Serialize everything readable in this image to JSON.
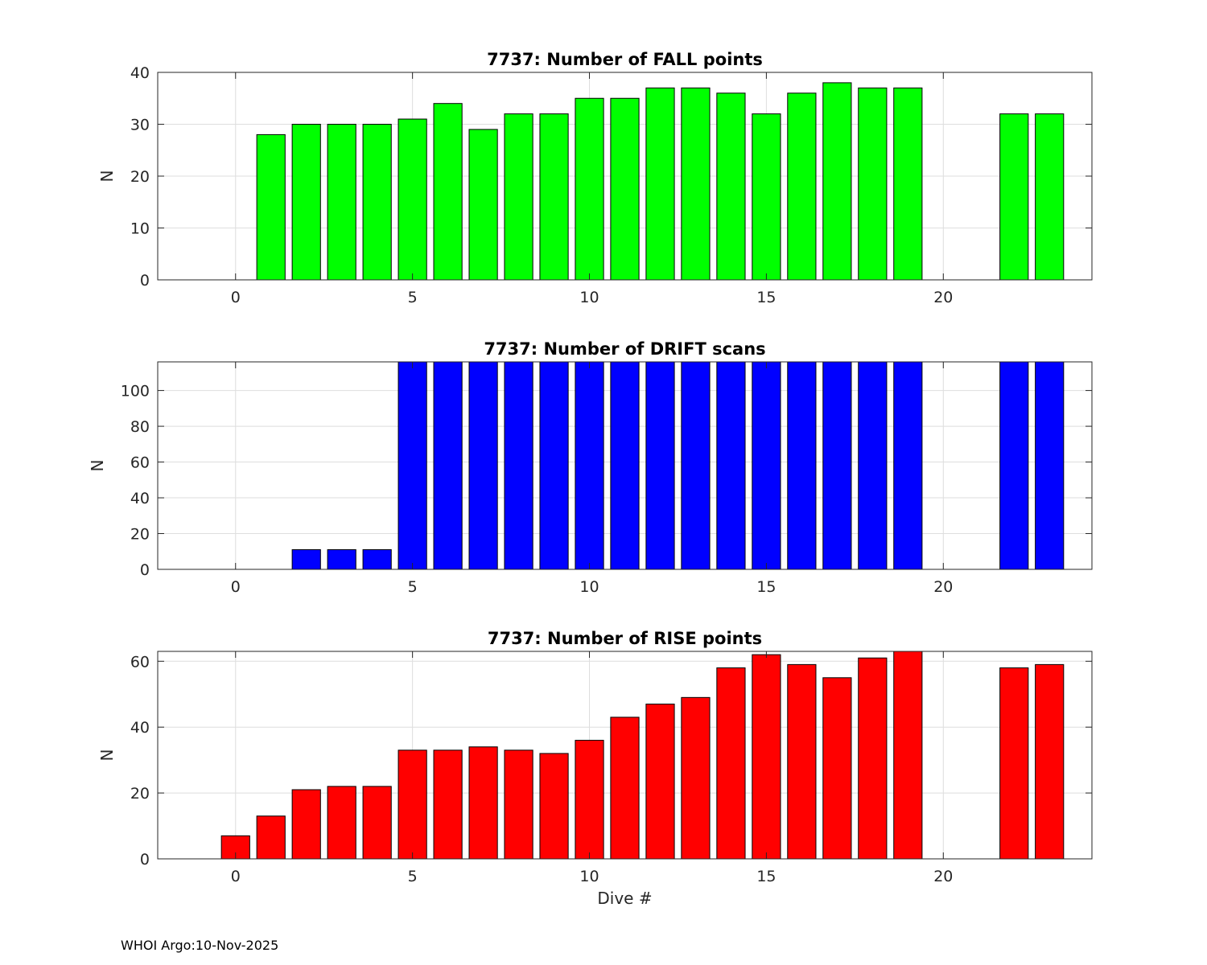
{
  "footer": "WHOI Argo:10-Nov-2025",
  "colors": {
    "fall": "#00ff00",
    "drift": "#0000ff",
    "rise": "#ff0000",
    "grid": "#dedede",
    "axis": "#262626"
  },
  "chart_data": [
    {
      "id": "fall",
      "type": "bar",
      "title": "7737: Number of FALL points",
      "xlabel": "",
      "ylabel": "N",
      "xlim": [
        -2.2,
        24.2
      ],
      "ylim": [
        0,
        40
      ],
      "xticks": [
        0,
        5,
        10,
        15,
        20
      ],
      "yticks": [
        0,
        10,
        20,
        30,
        40
      ],
      "grid": true,
      "color": "#00ff00",
      "x": [
        1,
        2,
        3,
        4,
        5,
        6,
        7,
        8,
        9,
        10,
        11,
        12,
        13,
        14,
        15,
        16,
        17,
        18,
        19,
        22,
        23
      ],
      "values": [
        28,
        30,
        30,
        30,
        31,
        34,
        29,
        32,
        32,
        35,
        35,
        37,
        37,
        36,
        32,
        36,
        38,
        37,
        37,
        32,
        32
      ]
    },
    {
      "id": "drift",
      "type": "bar",
      "title": "7737: Number of DRIFT scans",
      "xlabel": "",
      "ylabel": "N",
      "xlim": [
        -2.2,
        24.2
      ],
      "ylim": [
        0,
        116
      ],
      "xticks": [
        0,
        5,
        10,
        15,
        20
      ],
      "yticks": [
        0,
        20,
        40,
        60,
        80,
        100
      ],
      "grid": true,
      "color": "#0000ff",
      "x": [
        2,
        3,
        4,
        5,
        6,
        7,
        8,
        9,
        10,
        11,
        12,
        13,
        14,
        15,
        16,
        17,
        18,
        19,
        22,
        23
      ],
      "values": [
        11,
        11,
        11,
        116,
        116,
        116,
        116,
        116,
        116,
        116,
        116,
        116,
        116,
        116,
        116,
        116,
        116,
        116,
        116,
        116
      ]
    },
    {
      "id": "rise",
      "type": "bar",
      "title": "7737: Number of RISE points",
      "xlabel": "Dive #",
      "ylabel": "N",
      "xlim": [
        -2.2,
        24.2
      ],
      "ylim": [
        0,
        63
      ],
      "xticks": [
        0,
        5,
        10,
        15,
        20
      ],
      "yticks": [
        0,
        20,
        40,
        60
      ],
      "grid": true,
      "color": "#ff0000",
      "x": [
        0,
        1,
        2,
        3,
        4,
        5,
        6,
        7,
        8,
        9,
        10,
        11,
        12,
        13,
        14,
        15,
        16,
        17,
        18,
        19,
        22,
        23
      ],
      "values": [
        7,
        13,
        21,
        22,
        22,
        33,
        33,
        34,
        33,
        32,
        36,
        43,
        47,
        49,
        58,
        62,
        59,
        55,
        61,
        63,
        58,
        59
      ]
    }
  ]
}
